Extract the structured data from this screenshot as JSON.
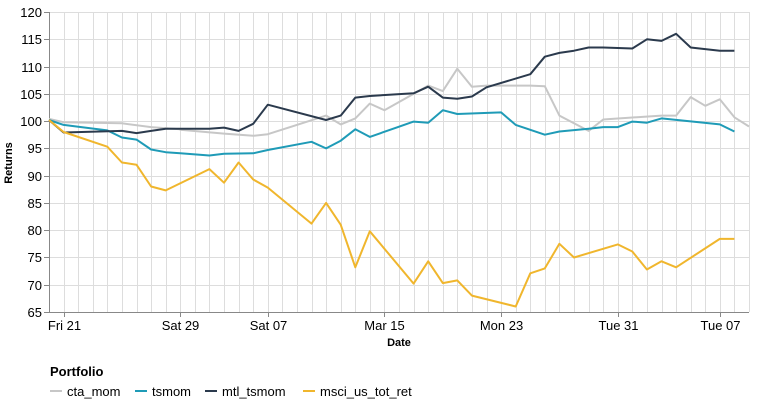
{
  "chart_data": {
    "type": "line",
    "xlabel": "Date",
    "ylabel": "Returns",
    "ylim": [
      65,
      120
    ],
    "y_ticks": [
      65,
      70,
      75,
      80,
      85,
      90,
      95,
      100,
      105,
      110,
      115,
      120
    ],
    "x_range": [
      "2019-02-20",
      "2019-04-08"
    ],
    "x_ticks": [
      {
        "date": "2019-02-21",
        "label": "Fri 21"
      },
      {
        "date": "2019-03-01",
        "label": "Sat 29"
      },
      {
        "date": "2019-03-07",
        "label": "Sat 07"
      },
      {
        "date": "2019-03-15",
        "label": "Mar 15"
      },
      {
        "date": "2019-03-23",
        "label": "Mon 23"
      },
      {
        "date": "2019-03-31",
        "label": "Tue 31"
      },
      {
        "date": "2019-04-07",
        "label": "Tue 07"
      }
    ],
    "grid": true,
    "legend": {
      "title": "Portfolio",
      "position": "bottom-left"
    },
    "series": [
      {
        "name": "cta_mom",
        "color": "#c7c7c7",
        "points": [
          [
            "2019-02-20",
            100.4
          ],
          [
            "2019-02-21",
            99.8
          ],
          [
            "2019-02-25",
            99.6
          ],
          [
            "2019-02-27",
            98.9
          ],
          [
            "2019-02-29",
            98.5
          ],
          [
            "2019-03-01",
            98.4
          ],
          [
            "2019-03-04",
            97.7
          ],
          [
            "2019-03-06",
            97.3
          ],
          [
            "2019-03-07",
            97.6
          ],
          [
            "2019-03-11",
            101.0
          ],
          [
            "2019-03-12",
            99.4
          ],
          [
            "2019-03-13",
            100.5
          ],
          [
            "2019-03-14",
            103.2
          ],
          [
            "2019-03-15",
            102.0
          ],
          [
            "2019-03-18",
            106.5
          ],
          [
            "2019-03-19",
            105.5
          ],
          [
            "2019-03-20",
            109.6
          ],
          [
            "2019-03-21",
            106.3
          ],
          [
            "2019-03-22",
            106.5
          ],
          [
            "2019-03-25",
            106.5
          ],
          [
            "2019-03-26",
            106.4
          ],
          [
            "2019-03-27",
            101.0
          ],
          [
            "2019-03-29",
            98.2
          ],
          [
            "2019-03-30",
            100.3
          ],
          [
            "2019-04-03",
            101.0
          ],
          [
            "2019-04-04",
            101.0
          ],
          [
            "2019-04-05",
            104.4
          ],
          [
            "2019-04-06",
            102.8
          ],
          [
            "2019-04-07",
            104.0
          ],
          [
            "2019-04-08",
            100.7
          ],
          [
            "2019-04-09",
            99.0
          ]
        ]
      },
      {
        "name": "tsmom",
        "color": "#1f9bb7",
        "points": [
          [
            "2019-02-20",
            100.2
          ],
          [
            "2019-02-21",
            99.3
          ],
          [
            "2019-02-24",
            98.3
          ],
          [
            "2019-02-25",
            97.0
          ],
          [
            "2019-02-26",
            96.6
          ],
          [
            "2019-02-27",
            94.8
          ],
          [
            "2019-02-28",
            94.3
          ],
          [
            "2019-03-01",
            94.1
          ],
          [
            "2019-03-03",
            93.7
          ],
          [
            "2019-03-04",
            94.0
          ],
          [
            "2019-03-06",
            94.1
          ],
          [
            "2019-03-07",
            94.7
          ],
          [
            "2019-03-10",
            96.2
          ],
          [
            "2019-03-11",
            95.0
          ],
          [
            "2019-03-12",
            96.4
          ],
          [
            "2019-03-13",
            98.5
          ],
          [
            "2019-03-14",
            97.1
          ],
          [
            "2019-03-17",
            99.9
          ],
          [
            "2019-03-18",
            99.7
          ],
          [
            "2019-03-19",
            102.0
          ],
          [
            "2019-03-20",
            101.3
          ],
          [
            "2019-03-23",
            101.6
          ],
          [
            "2019-03-24",
            99.3
          ],
          [
            "2019-03-25",
            98.4
          ],
          [
            "2019-03-26",
            97.5
          ],
          [
            "2019-03-27",
            98.1
          ],
          [
            "2019-03-29",
            98.6
          ],
          [
            "2019-03-30",
            98.9
          ],
          [
            "2019-03-31",
            98.9
          ],
          [
            "2019-04-01",
            99.9
          ],
          [
            "2019-04-02",
            99.7
          ],
          [
            "2019-04-03",
            100.5
          ],
          [
            "2019-04-07",
            99.4
          ],
          [
            "2019-04-08",
            98.1
          ]
        ]
      },
      {
        "name": "mtl_tsmom",
        "color": "#2b3a4d",
        "points": [
          [
            "2019-02-20",
            100.2
          ],
          [
            "2019-02-21",
            97.9
          ],
          [
            "2019-02-25",
            98.2
          ],
          [
            "2019-02-26",
            97.8
          ],
          [
            "2019-02-27",
            98.2
          ],
          [
            "2019-02-28",
            98.6
          ],
          [
            "2019-03-01",
            98.6
          ],
          [
            "2019-03-03",
            98.6
          ],
          [
            "2019-03-04",
            98.8
          ],
          [
            "2019-03-05",
            98.2
          ],
          [
            "2019-03-06",
            99.5
          ],
          [
            "2019-03-07",
            103.0
          ],
          [
            "2019-03-11",
            100.2
          ],
          [
            "2019-03-12",
            101.0
          ],
          [
            "2019-03-13",
            104.3
          ],
          [
            "2019-03-14",
            104.6
          ],
          [
            "2019-03-17",
            105.1
          ],
          [
            "2019-03-18",
            106.3
          ],
          [
            "2019-03-19",
            104.3
          ],
          [
            "2019-03-20",
            104.1
          ],
          [
            "2019-03-21",
            104.5
          ],
          [
            "2019-03-22",
            106.2
          ],
          [
            "2019-03-25",
            108.6
          ],
          [
            "2019-03-26",
            111.8
          ],
          [
            "2019-03-27",
            112.5
          ],
          [
            "2019-03-28",
            112.9
          ],
          [
            "2019-03-29",
            113.5
          ],
          [
            "2019-03-30",
            113.5
          ],
          [
            "2019-04-01",
            113.3
          ],
          [
            "2019-04-02",
            115.0
          ],
          [
            "2019-04-03",
            114.7
          ],
          [
            "2019-04-04",
            116.0
          ],
          [
            "2019-04-05",
            113.5
          ],
          [
            "2019-04-07",
            112.9
          ],
          [
            "2019-04-08",
            112.9
          ]
        ]
      },
      {
        "name": "msci_us_tot_ret",
        "color": "#f0b62d",
        "points": [
          [
            "2019-02-20",
            100.2
          ],
          [
            "2019-02-21",
            98.0
          ],
          [
            "2019-02-24",
            95.3
          ],
          [
            "2019-02-25",
            92.4
          ],
          [
            "2019-02-26",
            92.0
          ],
          [
            "2019-02-27",
            88.0
          ],
          [
            "2019-02-28",
            87.3
          ],
          [
            "2019-03-03",
            91.2
          ],
          [
            "2019-03-04",
            88.7
          ],
          [
            "2019-03-05",
            92.4
          ],
          [
            "2019-03-06",
            89.3
          ],
          [
            "2019-03-07",
            87.8
          ],
          [
            "2019-03-10",
            81.2
          ],
          [
            "2019-03-11",
            85.0
          ],
          [
            "2019-03-12",
            81.0
          ],
          [
            "2019-03-13",
            73.2
          ],
          [
            "2019-03-14",
            79.8
          ],
          [
            "2019-03-17",
            70.2
          ],
          [
            "2019-03-18",
            74.3
          ],
          [
            "2019-03-19",
            70.3
          ],
          [
            "2019-03-20",
            70.8
          ],
          [
            "2019-03-21",
            68.0
          ],
          [
            "2019-03-24",
            66.0
          ],
          [
            "2019-03-25",
            72.1
          ],
          [
            "2019-03-26",
            73.0
          ],
          [
            "2019-03-27",
            77.5
          ],
          [
            "2019-03-28",
            75.0
          ],
          [
            "2019-03-31",
            77.4
          ],
          [
            "2019-04-01",
            76.1
          ],
          [
            "2019-04-02",
            72.8
          ],
          [
            "2019-04-03",
            74.3
          ],
          [
            "2019-04-04",
            73.2
          ],
          [
            "2019-04-07",
            78.4
          ],
          [
            "2019-04-08",
            78.4
          ]
        ]
      }
    ]
  }
}
